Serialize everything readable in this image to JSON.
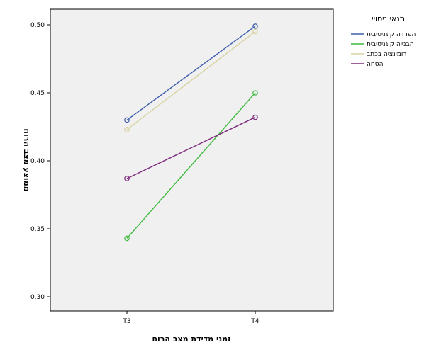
{
  "chart_data": {
    "type": "line",
    "categories": [
      "T3",
      "T4"
    ],
    "xlabel": "זמני מדידת מצב הרוח",
    "ylabel": "ממוצע מצב הרוח",
    "ylim": [
      0.29,
      0.51
    ],
    "yticks": [
      0.3,
      0.35,
      0.4,
      0.45,
      0.5
    ],
    "ytick_labels": [
      "0.30",
      "0.35",
      "0.40",
      "0.45",
      "0.50"
    ],
    "legend_title": "תנאי ניסויי",
    "legend_position": "top-right",
    "grid": false,
    "series": [
      {
        "name": "הפרדה קוגניטיבית",
        "values": [
          0.43,
          0.499
        ],
        "color": "#3f5eab"
      },
      {
        "name": "הבנייה קוגניטיבית",
        "values": [
          0.343,
          0.45
        ],
        "color": "#3fba3f"
      },
      {
        "name": "רומינציה בכתב",
        "values": [
          0.423,
          0.495
        ],
        "color": "#d8d3a2"
      },
      {
        "name": "הסחה",
        "values": [
          0.387,
          0.432
        ],
        "color": "#7d2a7d"
      }
    ],
    "plot_background": "#f0f0f0"
  }
}
